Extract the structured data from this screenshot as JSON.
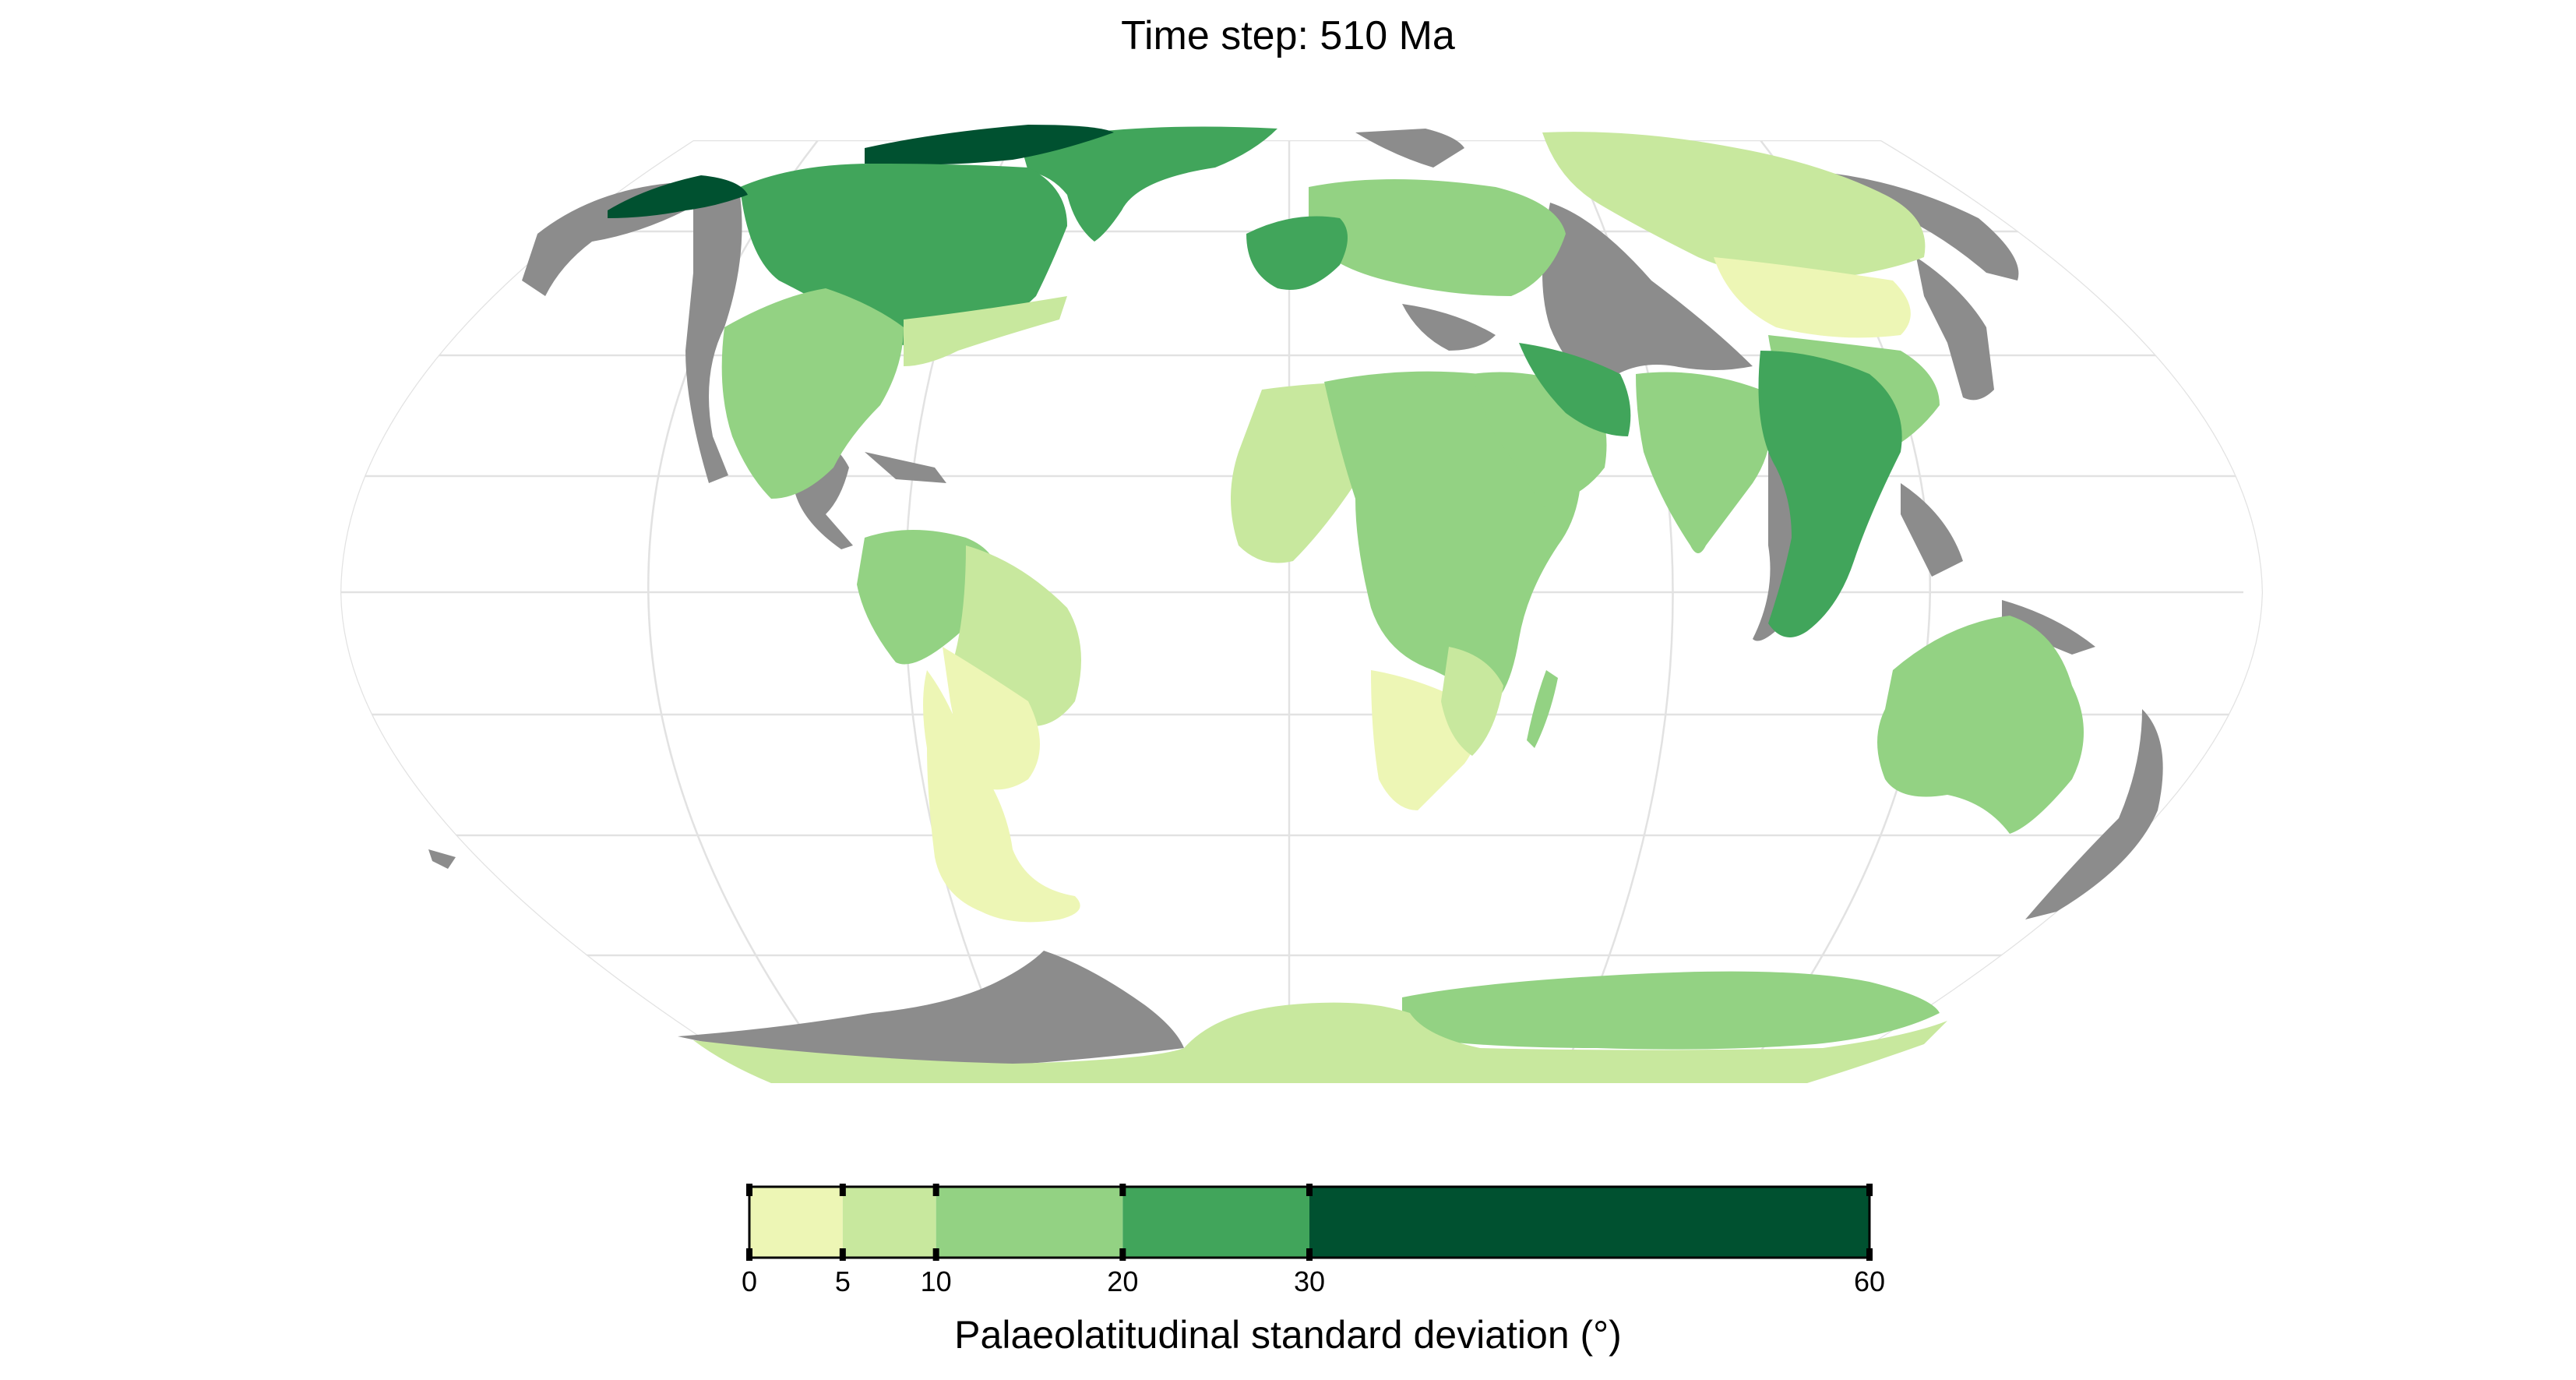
{
  "title": "Time step: 510 Ma",
  "legend": {
    "title": "Palaeolatitudinal standard deviation (°)",
    "breaks": [
      0,
      5,
      10,
      20,
      30,
      60
    ],
    "tick_labels": [
      "0",
      "5",
      "10",
      "20",
      "30",
      "60"
    ],
    "bins": [
      {
        "from": 0,
        "to": 5,
        "color": "#edf6b5"
      },
      {
        "from": 5,
        "to": 10,
        "color": "#c8e89e"
      },
      {
        "from": 10,
        "to": 20,
        "color": "#93d283"
      },
      {
        "from": 20,
        "to": 30,
        "color": "#41a55b"
      },
      {
        "from": 30,
        "to": 60,
        "color": "#005130"
      }
    ],
    "no_data_color": "#8c8c8c"
  },
  "map": {
    "projection": "Robinson",
    "graticule_color": "#e2e2e2",
    "ocean_color": "#ffffff",
    "regions": [
      {
        "name": "North America",
        "bin": 3
      },
      {
        "name": "Greenland",
        "bin": 3
      },
      {
        "name": "Western North America",
        "bin": 2
      },
      {
        "name": "Europe",
        "bin": 2
      },
      {
        "name": "North Asia",
        "bin": 1
      },
      {
        "name": "Africa",
        "bin": 2
      },
      {
        "name": "Southern Africa",
        "bin": 0
      },
      {
        "name": "South America",
        "bin": 1
      },
      {
        "name": "Patagonia",
        "bin": 0
      },
      {
        "name": "Arabia",
        "bin": 2
      },
      {
        "name": "India",
        "bin": 2
      },
      {
        "name": "South-East Asia",
        "bin": 3
      },
      {
        "name": "Australia",
        "bin": 2
      },
      {
        "name": "Antarctica",
        "bin": 1
      }
    ]
  }
}
